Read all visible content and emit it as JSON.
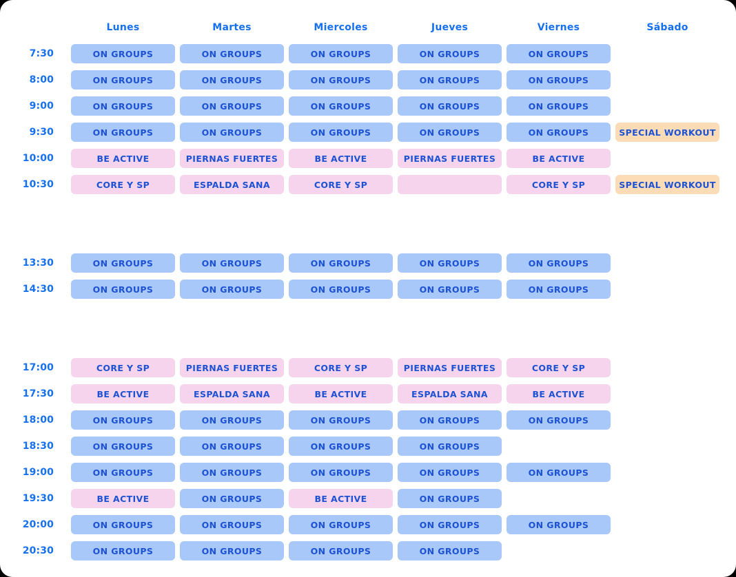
{
  "colors": {
    "on_groups_bg": "#a9c8fa",
    "class_bg": "#f7d4ed",
    "special_bg": "#fcdcb7",
    "cell_text": "#1c52d3",
    "header_text": "#1670f0",
    "card_background": "#ffffff",
    "page_background": "#000000"
  },
  "schedule": {
    "day_headers": [
      "Lunes",
      "Martes",
      "Miercoles",
      "Jueves",
      "Viernes",
      "Sábado"
    ],
    "rows": [
      {
        "time": "7:30",
        "cells": [
          {
            "label": "ON GROUPS",
            "color": "blue"
          },
          {
            "label": "ON GROUPS",
            "color": "blue"
          },
          {
            "label": "ON GROUPS",
            "color": "blue"
          },
          {
            "label": "ON GROUPS",
            "color": "blue"
          },
          {
            "label": "ON GROUPS",
            "color": "blue"
          },
          null
        ]
      },
      {
        "time": "8:00",
        "cells": [
          {
            "label": "ON GROUPS",
            "color": "blue"
          },
          {
            "label": "ON GROUPS",
            "color": "blue"
          },
          {
            "label": "ON GROUPS",
            "color": "blue"
          },
          {
            "label": "ON GROUPS",
            "color": "blue"
          },
          {
            "label": "ON GROUPS",
            "color": "blue"
          },
          null
        ]
      },
      {
        "time": "9:00",
        "cells": [
          {
            "label": "ON GROUPS",
            "color": "blue"
          },
          {
            "label": "ON GROUPS",
            "color": "blue"
          },
          {
            "label": "ON GROUPS",
            "color": "blue"
          },
          {
            "label": "ON GROUPS",
            "color": "blue"
          },
          {
            "label": "ON GROUPS",
            "color": "blue"
          },
          null
        ]
      },
      {
        "time": "9:30",
        "cells": [
          {
            "label": "ON GROUPS",
            "color": "blue"
          },
          {
            "label": "ON GROUPS",
            "color": "blue"
          },
          {
            "label": "ON GROUPS",
            "color": "blue"
          },
          {
            "label": "ON GROUPS",
            "color": "blue"
          },
          {
            "label": "ON GROUPS",
            "color": "blue"
          },
          {
            "label": "SPECIAL WORKOUT",
            "color": "orange"
          }
        ]
      },
      {
        "time": "10:00",
        "cells": [
          {
            "label": "BE ACTIVE",
            "color": "pink"
          },
          {
            "label": "PIERNAS FUERTES",
            "color": "pink"
          },
          {
            "label": "BE ACTIVE",
            "color": "pink"
          },
          {
            "label": "PIERNAS FUERTES",
            "color": "pink"
          },
          {
            "label": "BE ACTIVE",
            "color": "pink"
          },
          null
        ]
      },
      {
        "time": "10:30",
        "cells": [
          {
            "label": "CORE Y SP",
            "color": "pink"
          },
          {
            "label": "ESPALDA SANA",
            "color": "pink"
          },
          {
            "label": "CORE Y SP",
            "color": "pink"
          },
          {
            "label": "",
            "color": "pink"
          },
          {
            "label": "CORE Y SP",
            "color": "pink"
          },
          {
            "label": "SPECIAL WORKOUT",
            "color": "orange"
          }
        ]
      },
      {
        "gap": true
      },
      {
        "gap": true
      },
      {
        "time": "13:30",
        "cells": [
          {
            "label": "ON GROUPS",
            "color": "blue"
          },
          {
            "label": "ON GROUPS",
            "color": "blue"
          },
          {
            "label": "ON GROUPS",
            "color": "blue"
          },
          {
            "label": "ON GROUPS",
            "color": "blue"
          },
          {
            "label": "ON GROUPS",
            "color": "blue"
          },
          null
        ]
      },
      {
        "time": "14:30",
        "cells": [
          {
            "label": "ON GROUPS",
            "color": "blue"
          },
          {
            "label": "ON GROUPS",
            "color": "blue"
          },
          {
            "label": "ON GROUPS",
            "color": "blue"
          },
          {
            "label": "ON GROUPS",
            "color": "blue"
          },
          {
            "label": "ON GROUPS",
            "color": "blue"
          },
          null
        ]
      },
      {
        "gap": true
      },
      {
        "gap": true
      },
      {
        "time": "17:00",
        "cells": [
          {
            "label": "CORE Y SP",
            "color": "pink"
          },
          {
            "label": "PIERNAS FUERTES",
            "color": "pink"
          },
          {
            "label": "CORE Y SP",
            "color": "pink"
          },
          {
            "label": "PIERNAS FUERTES",
            "color": "pink"
          },
          {
            "label": "CORE Y SP",
            "color": "pink"
          },
          null
        ]
      },
      {
        "time": "17:30",
        "cells": [
          {
            "label": "BE ACTIVE",
            "color": "pink"
          },
          {
            "label": "ESPALDA SANA",
            "color": "pink"
          },
          {
            "label": "BE ACTIVE",
            "color": "pink"
          },
          {
            "label": "ESPALDA SANA",
            "color": "pink"
          },
          {
            "label": "BE ACTIVE",
            "color": "pink"
          },
          null
        ]
      },
      {
        "time": "18:00",
        "cells": [
          {
            "label": "ON GROUPS",
            "color": "blue"
          },
          {
            "label": "ON GROUPS",
            "color": "blue"
          },
          {
            "label": "ON GROUPS",
            "color": "blue"
          },
          {
            "label": "ON GROUPS",
            "color": "blue"
          },
          {
            "label": "ON GROUPS",
            "color": "blue"
          },
          null
        ]
      },
      {
        "time": "18:30",
        "cells": [
          {
            "label": "ON GROUPS",
            "color": "blue"
          },
          {
            "label": "ON GROUPS",
            "color": "blue"
          },
          {
            "label": "ON GROUPS",
            "color": "blue"
          },
          {
            "label": "ON GROUPS",
            "color": "blue"
          },
          null,
          null
        ]
      },
      {
        "time": "19:00",
        "cells": [
          {
            "label": "ON GROUPS",
            "color": "blue"
          },
          {
            "label": "ON GROUPS",
            "color": "blue"
          },
          {
            "label": "ON GROUPS",
            "color": "blue"
          },
          {
            "label": "ON GROUPS",
            "color": "blue"
          },
          {
            "label": "ON GROUPS",
            "color": "blue"
          },
          null
        ]
      },
      {
        "time": "19:30",
        "cells": [
          {
            "label": "BE ACTIVE",
            "color": "pink"
          },
          {
            "label": "ON GROUPS",
            "color": "blue"
          },
          {
            "label": "BE ACTIVE",
            "color": "pink"
          },
          {
            "label": "ON GROUPS",
            "color": "blue"
          },
          null,
          null
        ]
      },
      {
        "time": "20:00",
        "cells": [
          {
            "label": "ON GROUPS",
            "color": "blue"
          },
          {
            "label": "ON GROUPS",
            "color": "blue"
          },
          {
            "label": "ON GROUPS",
            "color": "blue"
          },
          {
            "label": "ON GROUPS",
            "color": "blue"
          },
          {
            "label": "ON GROUPS",
            "color": "blue"
          },
          null
        ]
      },
      {
        "time": "20:30",
        "cells": [
          {
            "label": "ON GROUPS",
            "color": "blue"
          },
          {
            "label": "ON GROUPS",
            "color": "blue"
          },
          {
            "label": "ON GROUPS",
            "color": "blue"
          },
          {
            "label": "ON GROUPS",
            "color": "blue"
          },
          null,
          null
        ]
      }
    ]
  }
}
